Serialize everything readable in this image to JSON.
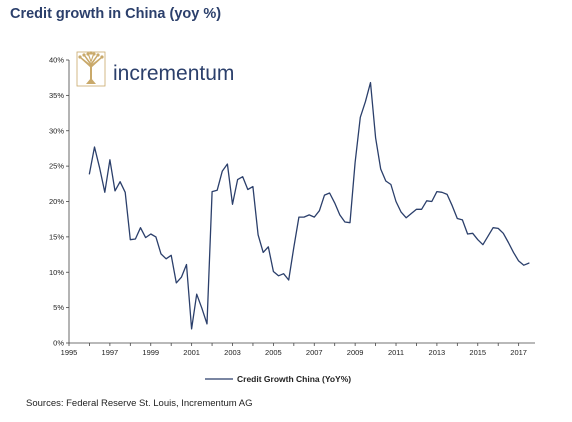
{
  "title": "Credit growth in China (yoy %)",
  "source": "Sources: Federal Reserve St. Louis, Incrementum AG",
  "logo_text": "incrementum",
  "colors": {
    "line": "#2b3f6b",
    "title": "#2b3f6b",
    "logo_tree": "#c9a96a"
  },
  "chart_data": {
    "type": "line",
    "title": "",
    "xlabel": "",
    "ylabel": "",
    "xlim": [
      1995,
      2017.8
    ],
    "ylim": [
      0,
      40
    ],
    "x_ticks": [
      "1995",
      "1997",
      "1999",
      "2001",
      "2003",
      "2005",
      "2007",
      "2009",
      "2011",
      "2013",
      "2015",
      "2017"
    ],
    "y_ticks": [
      "0%",
      "5%",
      "10%",
      "15%",
      "20%",
      "25%",
      "30%",
      "35%",
      "40%"
    ],
    "legend": "bottom-center",
    "grid": false,
    "series": [
      {
        "name": "Credit Growth China (YoY%)",
        "x": [
          1996.0,
          1996.25,
          1996.5,
          1996.75,
          1997.0,
          1997.25,
          1997.5,
          1997.75,
          1998.0,
          1998.25,
          1998.5,
          1998.75,
          1999.0,
          1999.25,
          1999.5,
          1999.75,
          2000.0,
          2000.25,
          2000.5,
          2000.75,
          2001.0,
          2001.25,
          2001.5,
          2001.75,
          2002.0,
          2002.25,
          2002.5,
          2002.75,
          2003.0,
          2003.25,
          2003.5,
          2003.75,
          2004.0,
          2004.25,
          2004.5,
          2004.75,
          2005.0,
          2005.25,
          2005.5,
          2005.75,
          2006.0,
          2006.25,
          2006.5,
          2006.75,
          2007.0,
          2007.25,
          2007.5,
          2007.75,
          2008.0,
          2008.25,
          2008.5,
          2008.75,
          2009.0,
          2009.25,
          2009.5,
          2009.75,
          2010.0,
          2010.25,
          2010.5,
          2010.75,
          2011.0,
          2011.25,
          2011.5,
          2011.75,
          2012.0,
          2012.25,
          2012.5,
          2012.75,
          2013.0,
          2013.25,
          2013.5,
          2013.75,
          2014.0,
          2014.25,
          2014.5,
          2014.75,
          2015.0,
          2015.25,
          2015.5,
          2015.75,
          2016.0,
          2016.25,
          2016.5,
          2016.75,
          2017.0,
          2017.25,
          2017.5
        ],
        "values": [
          23.9,
          27.7,
          24.7,
          21.3,
          25.9,
          21.5,
          22.8,
          21.3,
          14.6,
          14.7,
          16.3,
          14.9,
          15.4,
          15.0,
          12.6,
          11.9,
          12.4,
          8.5,
          9.3,
          11.1,
          2.0,
          6.9,
          4.9,
          2.7,
          21.4,
          21.6,
          24.3,
          25.3,
          19.6,
          23.1,
          23.5,
          21.7,
          22.1,
          15.3,
          12.8,
          13.6,
          10.1,
          9.5,
          9.8,
          8.9,
          13.5,
          17.8,
          17.8,
          18.1,
          17.8,
          18.7,
          20.9,
          21.2,
          19.8,
          18.1,
          17.1,
          17.0,
          25.5,
          31.9,
          34.1,
          36.8,
          29.0,
          24.6,
          22.9,
          22.4,
          20.0,
          18.5,
          17.7,
          18.3,
          18.9,
          18.9,
          20.1,
          20.0,
          21.4,
          21.3,
          21.0,
          19.4,
          17.6,
          17.4,
          15.4,
          15.5,
          14.6,
          13.9,
          15.1,
          16.3,
          16.2,
          15.5,
          14.2,
          12.8,
          11.6,
          11.0,
          11.3
        ]
      }
    ]
  }
}
